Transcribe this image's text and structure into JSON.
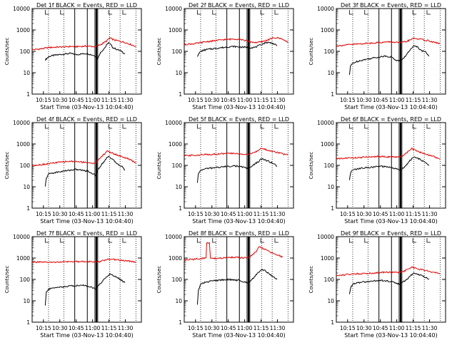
{
  "figure": {
    "start_time_label": "Start Time (03-Nov-13 10:04:40)",
    "ylabel": "Counts/sec",
    "legend_black": "BLACK = Events",
    "legend_red": "RED = LLD",
    "series_colors": {
      "events": "#000000",
      "lld": "#e00000"
    },
    "x_ticks": [
      "10:15",
      "10:30",
      "10:45",
      "11:00",
      "11:15",
      "11:30"
    ],
    "y_ticks": [
      "1",
      "10",
      "100",
      "1000",
      "10000"
    ]
  },
  "chart_data": [
    {
      "type": "line",
      "detector": "Det 1",
      "title": "Det 1f BLACK = Events, RED = LLD",
      "xlabel": "Start Time (03-Nov-13 10:04:40)",
      "ylabel": "Counts/sec",
      "yscale": "log",
      "ylim": [
        1,
        10000
      ],
      "x_unit": "minutes after 10:04:40",
      "xlim": [
        0,
        100
      ],
      "series": [
        {
          "name": "Events",
          "x": [
            12,
            15,
            17,
            20,
            25,
            30,
            35,
            40,
            45,
            50,
            54,
            58,
            60,
            62,
            65,
            67,
            70,
            72,
            74,
            78,
            82,
            85
          ],
          "y": [
            40,
            55,
            60,
            65,
            70,
            75,
            80,
            70,
            75,
            80,
            70,
            60,
            45,
            80,
            120,
            160,
            260,
            200,
            150,
            120,
            100,
            75
          ]
        },
        {
          "name": "LLD",
          "x": [
            0,
            5,
            10,
            15,
            20,
            25,
            30,
            35,
            40,
            45,
            50,
            54,
            58,
            62,
            65,
            68,
            71,
            73,
            76,
            80,
            85,
            90,
            95
          ],
          "y": [
            120,
            125,
            135,
            150,
            155,
            160,
            160,
            170,
            165,
            170,
            175,
            170,
            165,
            200,
            240,
            300,
            420,
            380,
            330,
            300,
            260,
            210,
            170
          ]
        }
      ]
    },
    {
      "type": "line",
      "detector": "Det 2",
      "title": "Det 2f BLACK = Events, RED = LLD",
      "xlabel": "Start Time (03-Nov-13 10:04:40)",
      "ylabel": "Counts/sec",
      "yscale": "log",
      "ylim": [
        1,
        10000
      ],
      "x_unit": "minutes after 10:04:40",
      "xlim": [
        0,
        100
      ],
      "series": [
        {
          "name": "Events",
          "x": [
            12,
            15,
            20,
            25,
            30,
            35,
            40,
            45,
            50,
            55,
            58,
            62,
            65,
            70,
            75,
            80,
            85
          ],
          "y": [
            60,
            100,
            120,
            130,
            140,
            150,
            160,
            170,
            160,
            155,
            150,
            150,
            155,
            200,
            260,
            250,
            180
          ]
        },
        {
          "name": "LLD",
          "x": [
            0,
            5,
            10,
            15,
            20,
            25,
            30,
            35,
            40,
            45,
            50,
            55,
            60,
            65,
            70,
            75,
            80,
            85,
            90,
            95
          ],
          "y": [
            210,
            220,
            230,
            250,
            280,
            300,
            320,
            350,
            360,
            380,
            370,
            330,
            280,
            260,
            270,
            320,
            400,
            430,
            380,
            250
          ]
        }
      ]
    },
    {
      "type": "line",
      "detector": "Det 3",
      "title": "Det 3f BLACK = Events, RED = LLD",
      "xlabel": "Start Time (03-Nov-13 10:04:40)",
      "ylabel": "Counts/sec",
      "yscale": "log",
      "ylim": [
        1,
        10000
      ],
      "x_unit": "minutes after 10:04:40",
      "xlim": [
        0,
        100
      ],
      "series": [
        {
          "name": "Events",
          "x": [
            12,
            13,
            15,
            20,
            25,
            30,
            35,
            40,
            45,
            50,
            54,
            58,
            62,
            65,
            68,
            71,
            74,
            78,
            82,
            85
          ],
          "y": [
            8,
            20,
            28,
            35,
            40,
            45,
            50,
            55,
            60,
            55,
            40,
            35,
            50,
            80,
            120,
            200,
            160,
            110,
            90,
            60
          ]
        },
        {
          "name": "LLD",
          "x": [
            0,
            5,
            10,
            15,
            20,
            25,
            30,
            35,
            40,
            45,
            50,
            55,
            60,
            65,
            68,
            71,
            74,
            78,
            82,
            86,
            90,
            95
          ],
          "y": [
            180,
            190,
            200,
            210,
            220,
            230,
            240,
            250,
            260,
            270,
            280,
            260,
            250,
            300,
            340,
            420,
            380,
            360,
            330,
            300,
            260,
            230
          ]
        }
      ]
    },
    {
      "type": "line",
      "detector": "Det 4",
      "title": "Det 4f BLACK = Events, RED = LLD",
      "xlabel": "Start Time (03-Nov-13 10:04:40)",
      "ylabel": "Counts/sec",
      "yscale": "log",
      "ylim": [
        1,
        10000
      ],
      "x_unit": "minutes after 10:04:40",
      "xlim": [
        0,
        100
      ],
      "series": [
        {
          "name": "Events",
          "x": [
            12,
            13,
            15,
            20,
            25,
            30,
            35,
            40,
            45,
            50,
            54,
            58,
            61,
            64,
            67,
            70,
            72,
            75,
            78,
            82,
            85
          ],
          "y": [
            10,
            25,
            40,
            45,
            50,
            55,
            60,
            65,
            60,
            55,
            45,
            35,
            70,
            120,
            180,
            280,
            220,
            160,
            120,
            90,
            60
          ]
        },
        {
          "name": "LLD",
          "x": [
            0,
            5,
            10,
            15,
            20,
            25,
            30,
            35,
            40,
            45,
            50,
            55,
            60,
            63,
            66,
            69,
            72,
            76,
            80,
            85,
            90,
            95
          ],
          "y": [
            100,
            105,
            110,
            120,
            130,
            140,
            150,
            155,
            150,
            145,
            140,
            120,
            160,
            250,
            330,
            480,
            400,
            330,
            280,
            230,
            180,
            130
          ]
        }
      ]
    },
    {
      "type": "line",
      "detector": "Det 5",
      "title": "Det 5f BLACK = Events, RED = LLD",
      "xlabel": "Start Time (03-Nov-13 10:04:40)",
      "ylabel": "Counts/sec",
      "yscale": "log",
      "ylim": [
        1,
        10000
      ],
      "x_unit": "minutes after 10:04:40",
      "xlim": [
        0,
        100
      ],
      "series": [
        {
          "name": "Events",
          "x": [
            12,
            13,
            15,
            20,
            25,
            30,
            35,
            40,
            45,
            50,
            55,
            58,
            62,
            65,
            68,
            71,
            74,
            78,
            82,
            85
          ],
          "y": [
            15,
            40,
            60,
            70,
            75,
            80,
            85,
            90,
            95,
            90,
            80,
            70,
            90,
            120,
            150,
            200,
            180,
            150,
            120,
            90
          ]
        },
        {
          "name": "LLD",
          "x": [
            0,
            5,
            10,
            15,
            20,
            25,
            30,
            35,
            40,
            45,
            50,
            55,
            60,
            65,
            68,
            71,
            74,
            78,
            82,
            86,
            90,
            95
          ],
          "y": [
            280,
            290,
            300,
            310,
            320,
            330,
            340,
            350,
            360,
            360,
            350,
            330,
            330,
            420,
            500,
            650,
            560,
            480,
            440,
            400,
            350,
            300
          ]
        }
      ]
    },
    {
      "type": "line",
      "detector": "Det 6",
      "title": "Det 6f BLACK = Events, RED = LLD",
      "xlabel": "Start Time (03-Nov-13 10:04:40)",
      "ylabel": "Counts/sec",
      "yscale": "log",
      "ylim": [
        1,
        10000
      ],
      "x_unit": "minutes after 10:04:40",
      "xlim": [
        0,
        100
      ],
      "series": [
        {
          "name": "Events",
          "x": [
            12,
            13,
            15,
            20,
            25,
            30,
            35,
            40,
            45,
            50,
            54,
            58,
            62,
            65,
            68,
            71,
            74,
            78,
            82,
            85
          ],
          "y": [
            20,
            45,
            60,
            70,
            75,
            80,
            85,
            90,
            85,
            80,
            70,
            60,
            80,
            120,
            180,
            250,
            220,
            170,
            130,
            100
          ]
        },
        {
          "name": "LLD",
          "x": [
            0,
            5,
            10,
            15,
            20,
            25,
            30,
            35,
            40,
            45,
            50,
            55,
            60,
            63,
            66,
            69,
            72,
            76,
            80,
            85,
            90,
            95
          ],
          "y": [
            200,
            210,
            220,
            225,
            230,
            240,
            250,
            260,
            260,
            255,
            250,
            240,
            260,
            350,
            450,
            600,
            520,
            420,
            360,
            300,
            250,
            200
          ]
        }
      ]
    },
    {
      "type": "line",
      "detector": "Det 7",
      "title": "Det 7f BLACK = Events, RED = LLD",
      "xlabel": "Start Time (03-Nov-13 10:04:40)",
      "ylabel": "Counts/sec",
      "yscale": "log",
      "ylim": [
        1,
        10000
      ],
      "x_unit": "minutes after 10:04:40",
      "xlim": [
        0,
        100
      ],
      "series": [
        {
          "name": "Events",
          "x": [
            12,
            13,
            15,
            20,
            25,
            30,
            35,
            40,
            45,
            50,
            54,
            58,
            62,
            65,
            68,
            71,
            74,
            78,
            82,
            85
          ],
          "y": [
            6,
            25,
            35,
            40,
            45,
            45,
            50,
            50,
            55,
            50,
            45,
            35,
            60,
            90,
            130,
            180,
            160,
            120,
            90,
            70
          ]
        },
        {
          "name": "LLD",
          "x": [
            0,
            5,
            10,
            15,
            20,
            25,
            30,
            35,
            40,
            45,
            50,
            55,
            60,
            65,
            70,
            75,
            80,
            85,
            90,
            95
          ],
          "y": [
            650,
            640,
            630,
            620,
            640,
            650,
            660,
            670,
            680,
            700,
            700,
            650,
            640,
            750,
            900,
            850,
            800,
            750,
            700,
            650
          ]
        }
      ]
    },
    {
      "type": "line",
      "detector": "Det 8",
      "title": "Det 8f BLACK = Events, RED = LLD",
      "xlabel": "Start Time (03-Nov-13 10:04:40)",
      "ylabel": "Counts/sec",
      "yscale": "log",
      "ylim": [
        1,
        10000
      ],
      "x_unit": "minutes after 10:04:40",
      "xlim": [
        0,
        100
      ],
      "series": [
        {
          "name": "Events",
          "x": [
            12,
            13,
            15,
            20,
            25,
            30,
            35,
            40,
            45,
            50,
            54,
            58,
            62,
            65,
            68,
            71,
            74,
            78,
            82,
            85
          ],
          "y": [
            7,
            30,
            60,
            75,
            85,
            90,
            95,
            100,
            95,
            90,
            80,
            70,
            100,
            150,
            220,
            300,
            250,
            180,
            130,
            100
          ]
        },
        {
          "name": "LLD",
          "x": [
            0,
            5,
            10,
            15,
            20,
            20.5,
            23,
            24,
            25,
            30,
            35,
            40,
            45,
            50,
            55,
            60,
            63,
            66,
            69,
            72,
            76,
            80,
            85,
            90
          ],
          "y": [
            800,
            850,
            900,
            950,
            1000,
            5000,
            5000,
            1000,
            1000,
            950,
            1000,
            1050,
            1100,
            1050,
            1000,
            1100,
            1500,
            2000,
            3500,
            2800,
            2200,
            1800,
            1400,
            1100
          ]
        }
      ]
    },
    {
      "type": "line",
      "detector": "Det 9",
      "title": "Det 9f BLACK = Events, RED = LLD",
      "xlabel": "Start Time (03-Nov-13 10:04:40)",
      "ylabel": "Counts/sec",
      "yscale": "log",
      "ylim": [
        1,
        10000
      ],
      "x_unit": "minutes after 10:04:40",
      "xlim": [
        0,
        100
      ],
      "series": [
        {
          "name": "Events",
          "x": [
            12,
            13,
            15,
            20,
            25,
            30,
            35,
            40,
            45,
            50,
            54,
            58,
            62,
            65,
            68,
            71,
            74,
            78,
            82,
            85
          ],
          "y": [
            20,
            40,
            60,
            70,
            75,
            80,
            85,
            90,
            85,
            80,
            70,
            60,
            80,
            110,
            150,
            200,
            180,
            150,
            120,
            100
          ]
        },
        {
          "name": "LLD",
          "x": [
            0,
            5,
            10,
            15,
            20,
            25,
            30,
            35,
            40,
            45,
            50,
            55,
            60,
            63,
            66,
            69,
            72,
            76,
            80,
            85,
            90,
            95
          ],
          "y": [
            150,
            160,
            170,
            180,
            185,
            190,
            195,
            200,
            210,
            220,
            220,
            210,
            220,
            260,
            300,
            380,
            340,
            300,
            270,
            240,
            210,
            180
          ]
        }
      ]
    }
  ]
}
